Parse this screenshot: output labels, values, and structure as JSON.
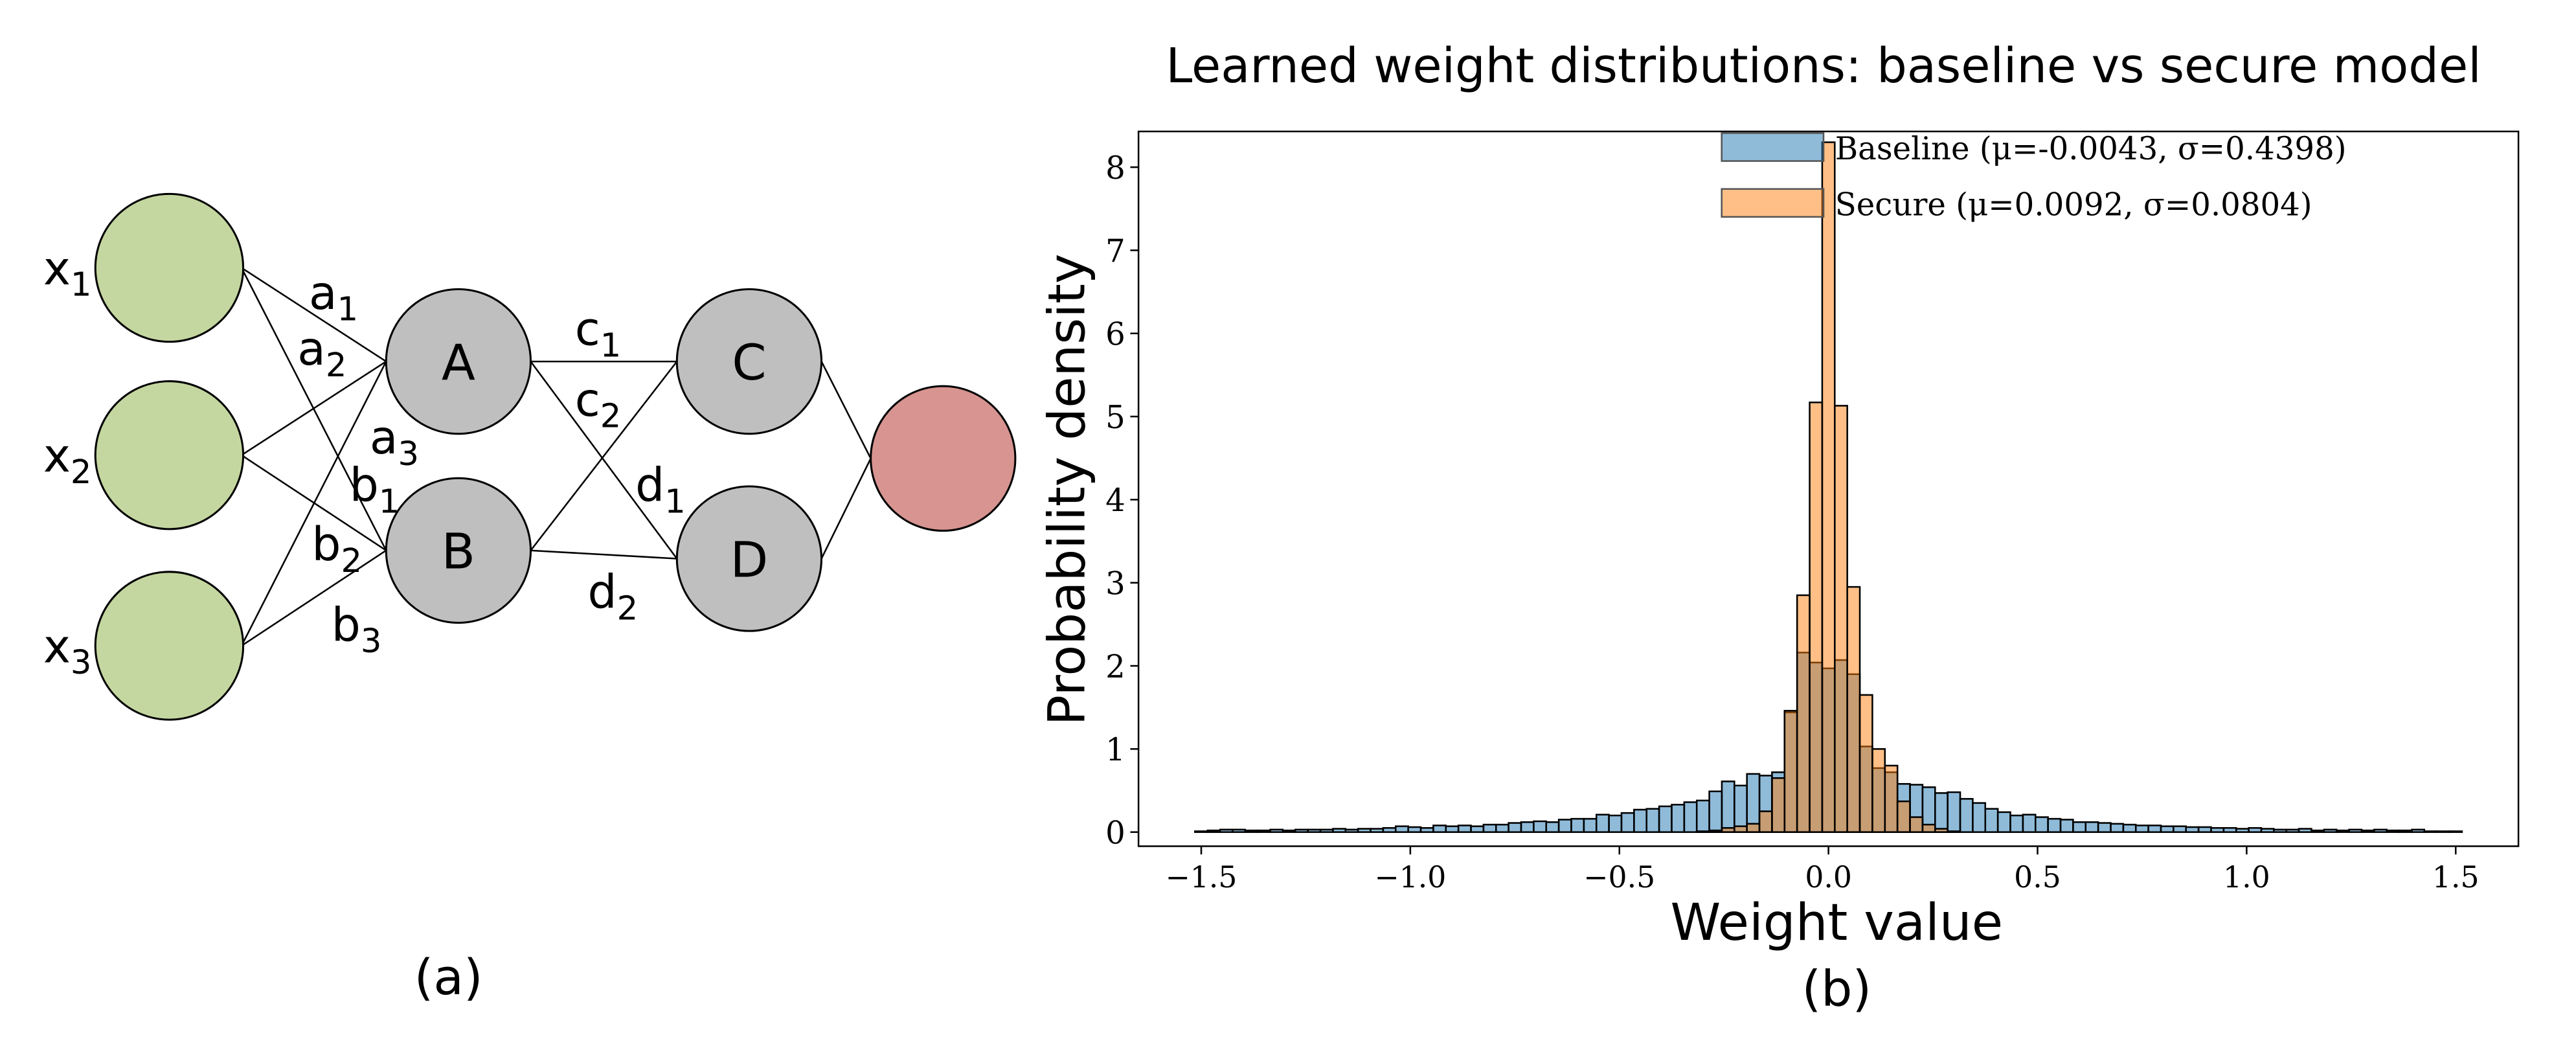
{
  "diagram": {
    "caption": "(a)",
    "inputs": [
      {
        "label": "x",
        "sub": "1"
      },
      {
        "label": "x",
        "sub": "2"
      },
      {
        "label": "x",
        "sub": "3"
      }
    ],
    "hidden1": [
      "A",
      "B"
    ],
    "hidden2": [
      "C",
      "D"
    ],
    "weights": [
      {
        "label": "a",
        "sub": "1"
      },
      {
        "label": "a",
        "sub": "2"
      },
      {
        "label": "a",
        "sub": "3"
      },
      {
        "label": "b",
        "sub": "1"
      },
      {
        "label": "b",
        "sub": "2"
      },
      {
        "label": "b",
        "sub": "3"
      },
      {
        "label": "c",
        "sub": "1"
      },
      {
        "label": "c",
        "sub": "2"
      },
      {
        "label": "d",
        "sub": "1"
      },
      {
        "label": "d",
        "sub": "2"
      }
    ],
    "colors": {
      "input": "#c5d7a0",
      "hidden": "#bfbfbf",
      "output": "#d79490"
    }
  },
  "chart_data": {
    "type": "bar",
    "subtype": "histogram",
    "title": "Learned weight distributions: baseline vs secure model",
    "xlabel": "Weight value",
    "ylabel": "Probability density",
    "caption": "(b)",
    "xlim": [
      -1.65,
      1.65
    ],
    "ylim": [
      -0.17,
      8.43
    ],
    "xticks": [
      -1.5,
      -1.0,
      -0.5,
      0.0,
      0.5,
      1.0,
      1.5
    ],
    "xtick_labels": [
      "−1.5",
      "−1.0",
      "−0.5",
      "0.0",
      "0.5",
      "1.0",
      "1.5"
    ],
    "yticks": [
      0,
      1,
      2,
      3,
      4,
      5,
      6,
      7,
      8
    ],
    "ytick_labels": [
      "0",
      "1",
      "2",
      "3",
      "4",
      "5",
      "6",
      "7",
      "8"
    ],
    "grid": false,
    "legend_position": "top-right",
    "bin_start": -1.5,
    "bin_width": 0.03,
    "series": [
      {
        "name": "Baseline (μ=-0.0043, σ=0.4398)",
        "color": "#1f77b4",
        "values": [
          0.01,
          0.02,
          0.03,
          0.03,
          0.02,
          0.02,
          0.03,
          0.02,
          0.03,
          0.03,
          0.03,
          0.04,
          0.03,
          0.04,
          0.04,
          0.05,
          0.07,
          0.06,
          0.05,
          0.08,
          0.07,
          0.08,
          0.07,
          0.09,
          0.09,
          0.11,
          0.12,
          0.13,
          0.12,
          0.15,
          0.16,
          0.16,
          0.21,
          0.2,
          0.23,
          0.27,
          0.28,
          0.31,
          0.33,
          0.36,
          0.38,
          0.49,
          0.61,
          0.56,
          0.7,
          0.68,
          0.72,
          1.44,
          2.16,
          2.04,
          1.97,
          2.07,
          1.9,
          1.03,
          0.77,
          0.72,
          0.58,
          0.57,
          0.54,
          0.47,
          0.48,
          0.4,
          0.35,
          0.28,
          0.24,
          0.2,
          0.21,
          0.18,
          0.16,
          0.15,
          0.12,
          0.12,
          0.11,
          0.1,
          0.09,
          0.08,
          0.08,
          0.07,
          0.07,
          0.06,
          0.06,
          0.05,
          0.05,
          0.04,
          0.05,
          0.04,
          0.03,
          0.03,
          0.04,
          0.02,
          0.03,
          0.02,
          0.03,
          0.02,
          0.03,
          0.02,
          0.02,
          0.03,
          0.01,
          0.01,
          0.01
        ]
      },
      {
        "name": "Secure (μ=0.0092, σ=0.0804)",
        "color": "#ff7f0e",
        "values": [
          0,
          0,
          0,
          0,
          0,
          0,
          0,
          0,
          0,
          0,
          0,
          0,
          0,
          0,
          0,
          0,
          0,
          0,
          0,
          0,
          0,
          0,
          0,
          0,
          0,
          0,
          0,
          0,
          0,
          0,
          0,
          0,
          0,
          0,
          0,
          0,
          0,
          0,
          0,
          0,
          0.01,
          0.02,
          0.05,
          0.07,
          0.1,
          0.25,
          0.65,
          1.46,
          2.85,
          5.17,
          8.3,
          5.13,
          2.95,
          1.65,
          1.0,
          0.8,
          0.37,
          0.18,
          0.09,
          0.04,
          0.01,
          0,
          0,
          0,
          0,
          0,
          0,
          0,
          0,
          0,
          0,
          0,
          0,
          0,
          0,
          0,
          0,
          0,
          0,
          0,
          0,
          0,
          0,
          0,
          0,
          0,
          0,
          0,
          0,
          0,
          0,
          0,
          0,
          0,
          0,
          0,
          0,
          0,
          0,
          0,
          0
        ]
      }
    ]
  }
}
